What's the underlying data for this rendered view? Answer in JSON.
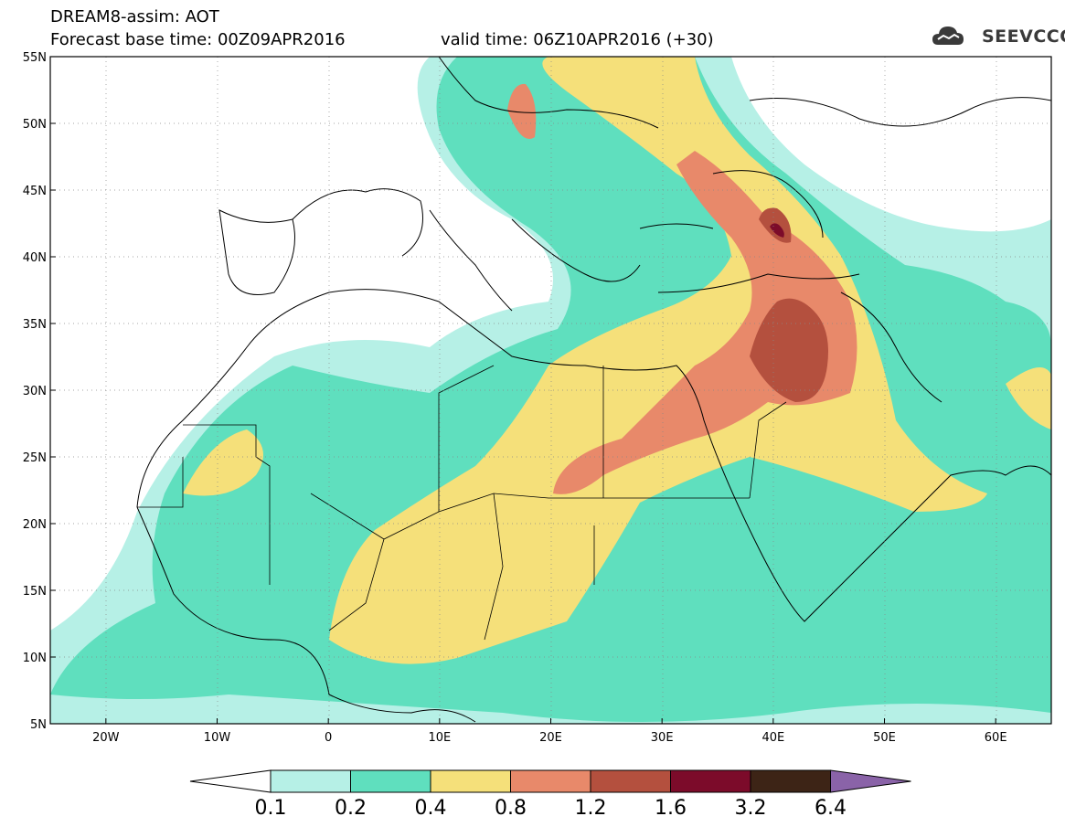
{
  "header": {
    "model": "DREAM8-assim: AOT",
    "base_time": "Forecast base time: 00Z09APR2016",
    "valid_time": "valid time: 06Z10APR2016 (+30)"
  },
  "logo": {
    "text": "SEEVCCC",
    "icon": "cloud-icon"
  },
  "map": {
    "lat_labels": [
      "55N",
      "50N",
      "45N",
      "40N",
      "35N",
      "30N",
      "25N",
      "20N",
      "15N",
      "10N",
      "5N"
    ],
    "lon_labels": [
      "20W",
      "10W",
      "0",
      "10E",
      "20E",
      "30E",
      "40E",
      "50E",
      "60E"
    ],
    "lat_values": [
      55,
      50,
      45,
      40,
      35,
      30,
      25,
      20,
      15,
      10,
      5
    ],
    "lon_values": [
      -20,
      -10,
      0,
      10,
      20,
      30,
      40,
      50,
      60
    ],
    "extent": {
      "lon": [
        -25,
        65
      ],
      "lat": [
        5,
        55
      ]
    }
  },
  "colorbar": {
    "labels": [
      "0.1",
      "0.2",
      "0.4",
      "0.8",
      "1.2",
      "1.6",
      "3.2",
      "6.4"
    ],
    "colors": [
      "#ffffff",
      "#b6f0e6",
      "#5fdfbe",
      "#f5e07a",
      "#e8896a",
      "#b4503e",
      "#7c0b2a",
      "#3d2416",
      "#8a63a8"
    ]
  }
}
